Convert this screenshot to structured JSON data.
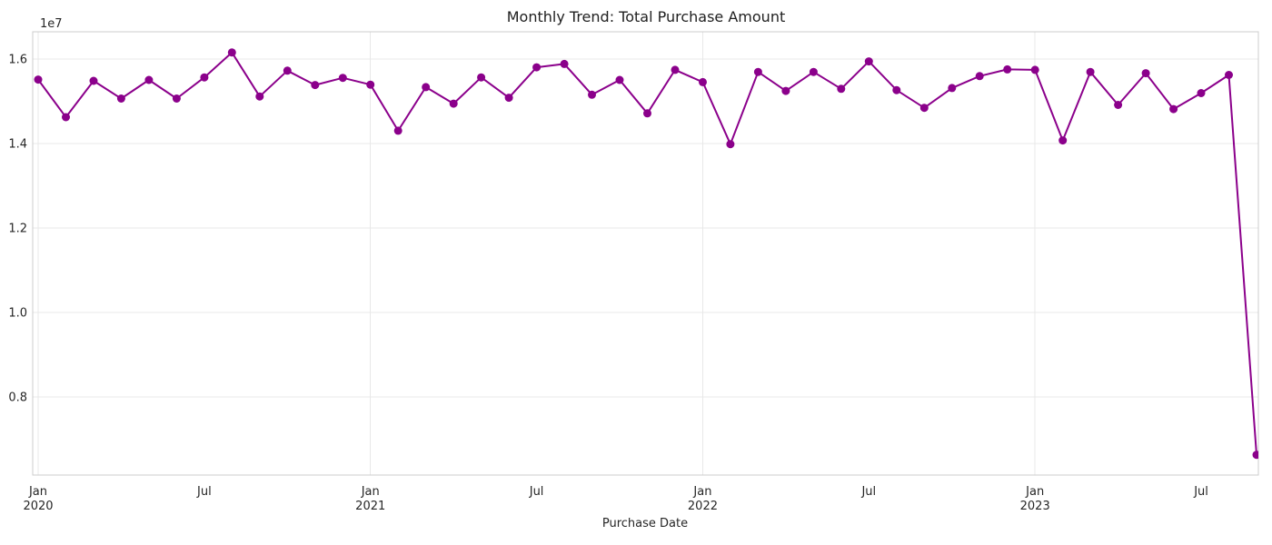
{
  "chart_data": {
    "type": "line",
    "title": "Monthly Trend: Total Purchase Amount",
    "xlabel": "Purchase Date",
    "ylabel": "",
    "y_axis": {
      "offset_label": "1e7",
      "ticks": [
        {
          "value": 8000000,
          "label": "0.8"
        },
        {
          "value": 10000000,
          "label": "1.0"
        },
        {
          "value": 12000000,
          "label": "1.2"
        },
        {
          "value": 14000000,
          "label": "1.4"
        },
        {
          "value": 16000000,
          "label": "1.6"
        }
      ]
    },
    "x_axis": {
      "ticks": [
        {
          "month_index": 0,
          "label": "Jan",
          "year_label": "2020"
        },
        {
          "month_index": 6,
          "label": "Jul",
          "year_label": ""
        },
        {
          "month_index": 12,
          "label": "Jan",
          "year_label": "2021"
        },
        {
          "month_index": 18,
          "label": "Jul",
          "year_label": ""
        },
        {
          "month_index": 24,
          "label": "Jan",
          "year_label": "2022"
        },
        {
          "month_index": 30,
          "label": "Jul",
          "year_label": ""
        },
        {
          "month_index": 36,
          "label": "Jan",
          "year_label": "2023"
        },
        {
          "month_index": 42,
          "label": "Jul",
          "year_label": ""
        }
      ]
    },
    "ylim": [
      6150000,
      16640000
    ],
    "grid": {
      "horizontal": true,
      "vertical_at_year_ticks": true
    },
    "legend": null,
    "categories": [
      "2020-01",
      "2020-02",
      "2020-03",
      "2020-04",
      "2020-05",
      "2020-06",
      "2020-07",
      "2020-08",
      "2020-09",
      "2020-10",
      "2020-11",
      "2020-12",
      "2021-01",
      "2021-02",
      "2021-03",
      "2021-04",
      "2021-05",
      "2021-06",
      "2021-07",
      "2021-08",
      "2021-09",
      "2021-10",
      "2021-11",
      "2021-12",
      "2022-01",
      "2022-02",
      "2022-03",
      "2022-04",
      "2022-05",
      "2022-06",
      "2022-07",
      "2022-08",
      "2022-09",
      "2022-10",
      "2022-11",
      "2022-12",
      "2023-01",
      "2023-02",
      "2023-03",
      "2023-04",
      "2023-05",
      "2023-06",
      "2023-07",
      "2023-08",
      "2023-09"
    ],
    "series": [
      {
        "name": "Total Purchase Amount",
        "color": "#8B008B",
        "values": [
          15510000,
          14620000,
          15480000,
          15060000,
          15500000,
          15060000,
          15560000,
          16150000,
          15110000,
          15720000,
          15380000,
          15550000,
          15390000,
          14300000,
          15330000,
          14940000,
          15560000,
          15080000,
          15800000,
          15880000,
          15150000,
          15500000,
          14710000,
          15740000,
          15450000,
          13980000,
          15690000,
          15240000,
          15690000,
          15290000,
          15940000,
          15260000,
          14840000,
          15310000,
          15590000,
          15750000,
          15740000,
          14070000,
          15690000,
          14910000,
          15660000,
          14810000,
          15190000,
          15620000,
          6630000
        ]
      }
    ]
  }
}
